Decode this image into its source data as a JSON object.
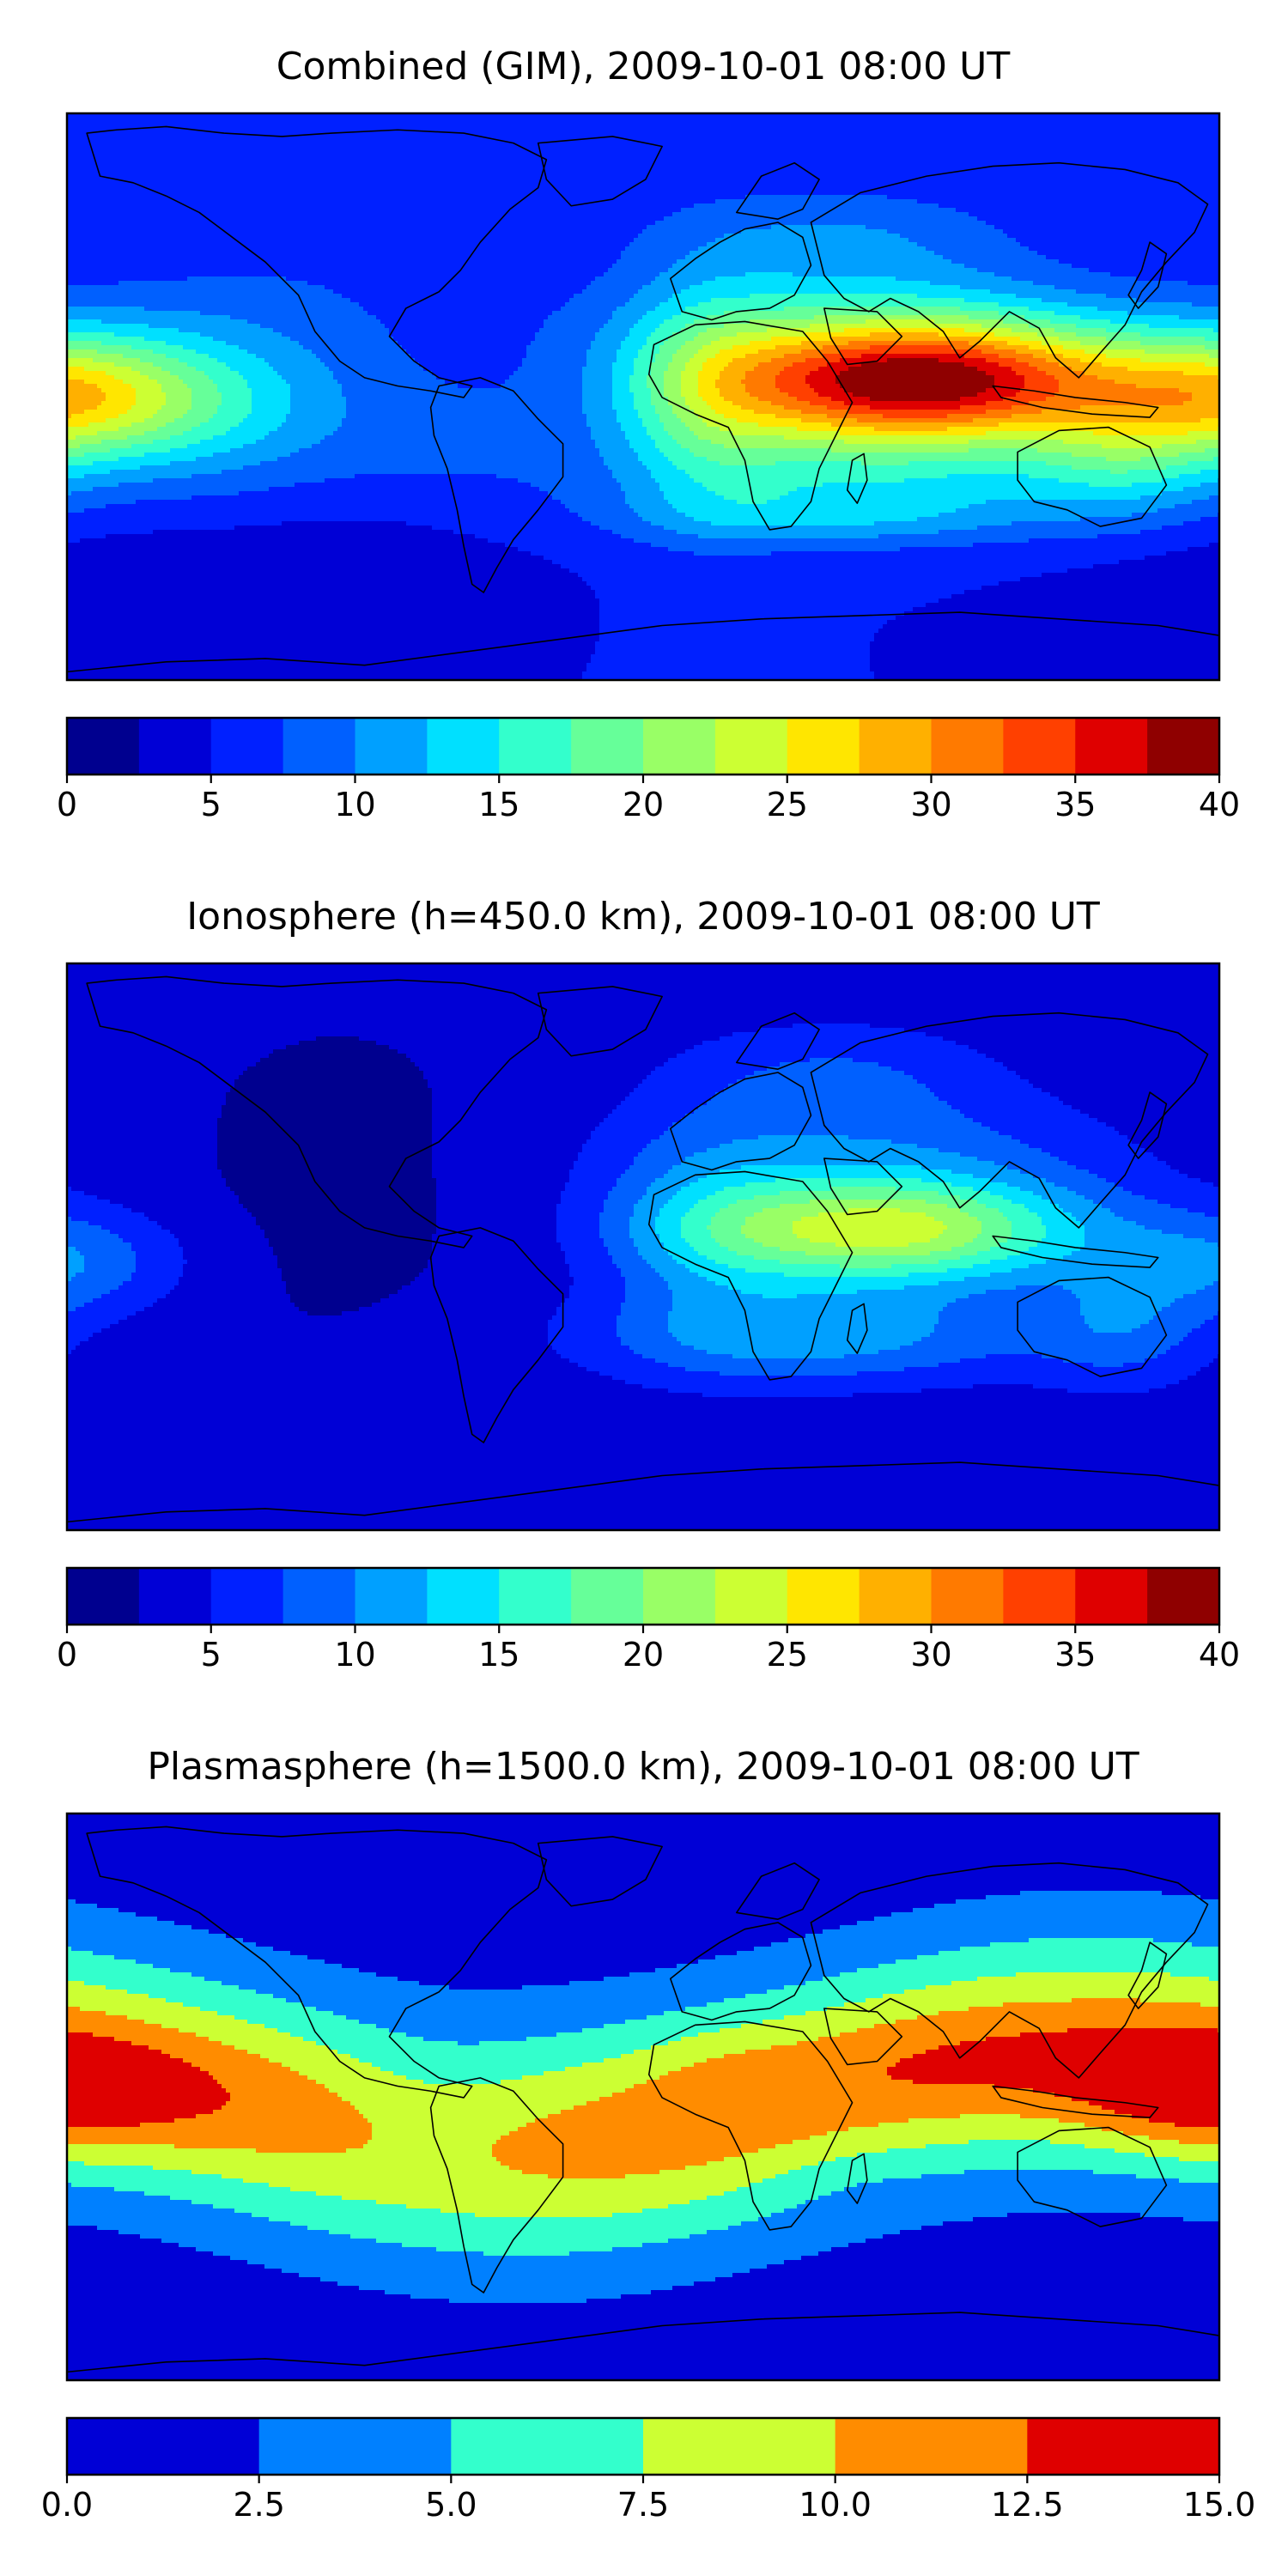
{
  "chart_data": [
    {
      "type": "heatmap",
      "subtype": "filled-contour map (world, equirectangular)",
      "title": "Combined (GIM), 2009-10-01 08:00 UT",
      "xlim": [
        -180,
        180
      ],
      "ylim": [
        -90,
        90
      ],
      "grid": false,
      "colorbar": {
        "levels": [
          0,
          2.5,
          5,
          7.5,
          10,
          12.5,
          15,
          17.5,
          20,
          22.5,
          25,
          27.5,
          30,
          32.5,
          35,
          37.5,
          40
        ],
        "ticks": [
          0,
          5,
          10,
          15,
          20,
          25,
          30,
          35,
          40
        ],
        "tick_labels": [
          "0",
          "5",
          "10",
          "15",
          "20",
          "25",
          "30",
          "35",
          "40"
        ]
      },
      "field": {
        "background": 5,
        "blobs": [
          {
            "lon": 85,
            "lat": 5,
            "slon": 48,
            "slat": 13,
            "amp": 33
          },
          {
            "lon": 70,
            "lat": -20,
            "slon": 60,
            "slat": 14,
            "amp": 8
          },
          {
            "lon": 60,
            "lat": -38,
            "slon": 45,
            "slat": 7,
            "amp": 5
          },
          {
            "lon": 20,
            "lat": 0,
            "slon": 18,
            "slat": 28,
            "amp": 6
          },
          {
            "lon": 150,
            "lat": -20,
            "slon": 22,
            "slat": 14,
            "amp": 6
          },
          {
            "lon": 70,
            "lat": 25,
            "slon": 60,
            "slat": 12,
            "amp": 6
          },
          {
            "lon": 60,
            "lat": 50,
            "slon": 40,
            "slat": 12,
            "amp": 5
          },
          {
            "lon": -178,
            "lat": 0,
            "slon": 30,
            "slat": 14,
            "amp": 16
          },
          {
            "lon": -130,
            "lat": -3,
            "slon": 35,
            "slat": 18,
            "amp": 7
          },
          {
            "lon": -120,
            "lat": 30,
            "slon": 40,
            "slat": 14,
            "amp": 2
          },
          {
            "lon": -80,
            "lat": 60,
            "slon": 35,
            "slat": 12,
            "amp": 2
          },
          {
            "lon": -60,
            "lat": -15,
            "slon": 25,
            "slat": 18,
            "amp": 1.5
          }
        ],
        "dips": [
          {
            "lon": -85,
            "lat": -55,
            "slon": 30,
            "slat": 12,
            "amp": 2
          },
          {
            "lon": -160,
            "lat": -60,
            "slon": 40,
            "slat": 12,
            "amp": 2
          }
        ]
      }
    },
    {
      "type": "heatmap",
      "subtype": "filled-contour map (world, equirectangular)",
      "title": "Ionosphere  (h=450.0 km), 2009-10-01 08:00 UT",
      "xlim": [
        -180,
        180
      ],
      "ylim": [
        -90,
        90
      ],
      "grid": false,
      "colorbar": {
        "levels": [
          0,
          2.5,
          5,
          7.5,
          10,
          12.5,
          15,
          17.5,
          20,
          22.5,
          25,
          27.5,
          30,
          32.5,
          35,
          37.5,
          40
        ],
        "ticks": [
          0,
          5,
          10,
          15,
          20,
          25,
          30,
          35,
          40
        ],
        "tick_labels": [
          "0",
          "5",
          "10",
          "15",
          "20",
          "25",
          "30",
          "35",
          "40"
        ]
      },
      "field": {
        "background": 3.2,
        "blobs": [
          {
            "lon": 75,
            "lat": 5,
            "slon": 45,
            "slat": 12,
            "amp": 20
          },
          {
            "lon": 55,
            "lat": -28,
            "slon": 50,
            "slat": 11,
            "amp": 8
          },
          {
            "lon": 70,
            "lat": 30,
            "slon": 55,
            "slat": 14,
            "amp": 5
          },
          {
            "lon": 20,
            "lat": 5,
            "slon": 22,
            "slat": 25,
            "amp": 4
          },
          {
            "lon": 150,
            "lat": -25,
            "slon": 20,
            "slat": 14,
            "amp": 5
          },
          {
            "lon": 60,
            "lat": 55,
            "slon": 35,
            "slat": 12,
            "amp": 4
          },
          {
            "lon": -178,
            "lat": -5,
            "slon": 25,
            "slat": 12,
            "amp": 6
          }
        ],
        "dips": [
          {
            "lon": -95,
            "lat": 20,
            "slon": 45,
            "slat": 45,
            "amp": 1.2
          }
        ]
      }
    },
    {
      "type": "heatmap",
      "subtype": "filled-contour map (world, equirectangular)",
      "title": "Plasmasphere (h=1500.0 km), 2009-10-01 08:00 UT",
      "xlim": [
        -180,
        180
      ],
      "ylim": [
        -90,
        90
      ],
      "grid": false,
      "colorbar": {
        "levels": [
          0,
          2.5,
          5,
          7.5,
          10,
          12.5,
          15
        ],
        "ticks": [
          0,
          2.5,
          5,
          7.5,
          10,
          12.5,
          15
        ],
        "tick_labels": [
          "0.0",
          "2.5",
          "5.0",
          "7.5",
          "10.0",
          "12.5",
          "15.0"
        ]
      },
      "field": {
        "band": {
          "lat0": 0,
          "lon_amp": 15,
          "lon_phase": 50,
          "sigma": 26,
          "amp": 10.2,
          "base": 1.0
        },
        "blobs": [
          {
            "lon": -175,
            "lat": 0,
            "slon": 35,
            "slat": 14,
            "amp": 2.8
          },
          {
            "lon": 170,
            "lat": 0,
            "slon": 25,
            "slat": 14,
            "amp": 2.8
          },
          {
            "lon": 110,
            "lat": 10,
            "slon": 40,
            "slat": 12,
            "amp": 1.8
          },
          {
            "lon": 25,
            "lat": 5,
            "slon": 20,
            "slat": 14,
            "amp": 1.2
          }
        ],
        "dips": [
          {
            "lon": -65,
            "lat": -5,
            "slon": 25,
            "slat": 20,
            "amp": 1.8
          },
          {
            "lon": 60,
            "lat": -25,
            "slon": 20,
            "slat": 8,
            "amp": 0.8
          }
        ]
      }
    }
  ]
}
